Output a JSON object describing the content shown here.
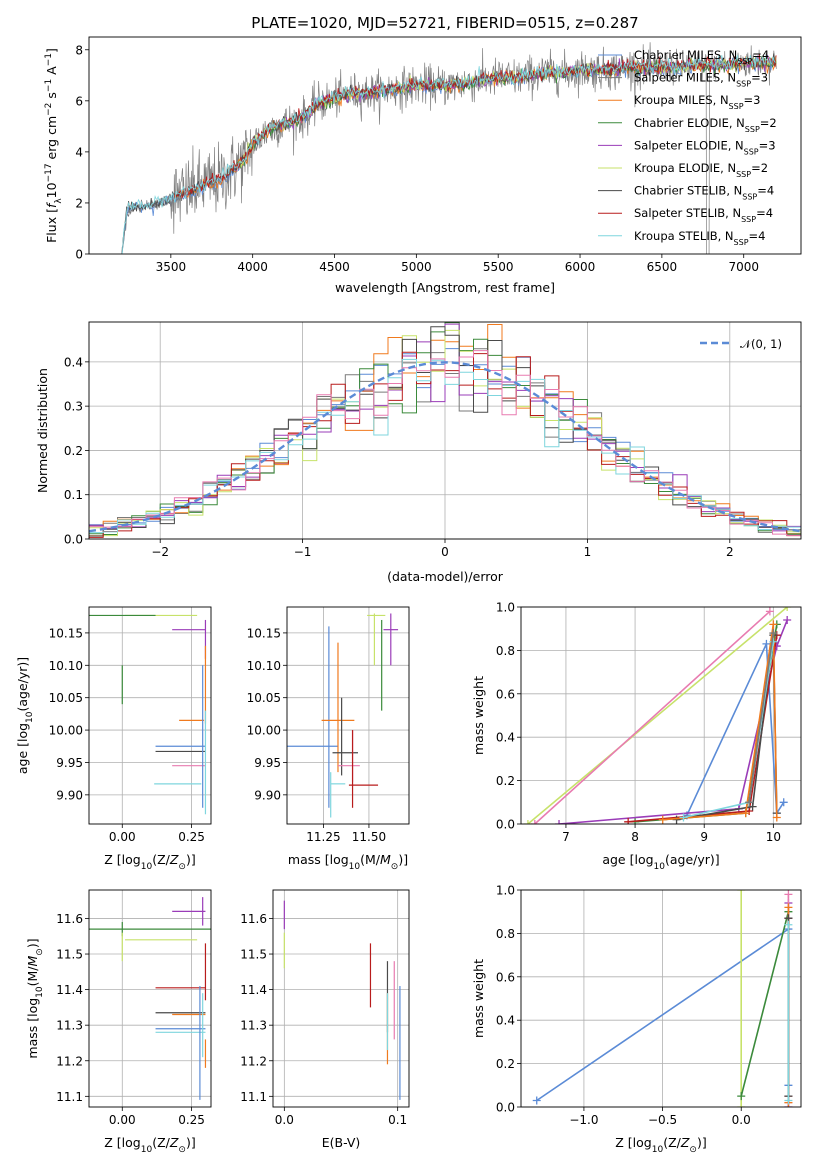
{
  "title": "PLATE=1020, MJD=52721, FIBERID=0515, z=0.287",
  "colors": {
    "chabrier_miles": "#5b8bd6",
    "salpeter_miles": "#7a7a7a",
    "kroupa_miles": "#f07a1e",
    "chabrier_elodie": "#3b8a3b",
    "salpeter_elodie": "#9a3cb8",
    "kroupa_elodie": "#c7e26a",
    "chabrier_stelib": "#4a4a4a",
    "salpeter_stelib": "#b81c1c",
    "kroupa_stelib": "#7fd6de",
    "pink": "#e87bb0",
    "data": "#808080"
  },
  "chart_data": [
    {
      "type": "line",
      "xlabel": "wavelength [Angstrom, rest frame]",
      "ylabel": "Flux [f_λ 10^-17 erg cm^-2 s^-1 A^-1]",
      "xlim": [
        3000,
        7350
      ],
      "ylim": [
        0,
        8.5
      ],
      "xticks": [
        "3500",
        "4000",
        "4500",
        "5000",
        "5500",
        "6000",
        "6500",
        "7000"
      ],
      "yticks": [
        "0",
        "2",
        "4",
        "6",
        "8"
      ],
      "legend_position": "top-right",
      "legend": [
        {
          "main": "Chabrier MILES, N",
          "sub": "SSP",
          "tail": "=4",
          "color": "chabrier_miles"
        },
        {
          "main": "Salpeter MILES, N",
          "sub": "SSP",
          "tail": "=3",
          "color": "salpeter_miles"
        },
        {
          "main": "Kroupa MILES, N",
          "sub": "SSP",
          "tail": "=3",
          "color": "kroupa_miles"
        },
        {
          "main": "Chabrier ELODIE, N",
          "sub": "SSP",
          "tail": "=2",
          "color": "chabrier_elodie"
        },
        {
          "main": "Salpeter ELODIE, N",
          "sub": "SSP",
          "tail": "=3",
          "color": "salpeter_elodie"
        },
        {
          "main": "Kroupa ELODIE, N",
          "sub": "SSP",
          "tail": "=2",
          "color": "kroupa_elodie"
        },
        {
          "main": "Chabrier STELIB, N",
          "sub": "SSP",
          "tail": "=4",
          "color": "chabrier_stelib"
        },
        {
          "main": "Salpeter STELIB, N",
          "sub": "SSP",
          "tail": "=4",
          "color": "salpeter_stelib"
        },
        {
          "main": "Kroupa STELIB, N",
          "sub": "SSP",
          "tail": "=4",
          "color": "kroupa_stelib"
        }
      ],
      "continuum_x": [
        3200,
        3230,
        3300,
        3400,
        3500,
        3600,
        3700,
        3800,
        3900,
        3950,
        4000,
        4100,
        4200,
        4300,
        4400,
        4500,
        4600,
        4700,
        4800,
        4900,
        5000,
        5100,
        5200,
        5300,
        5400,
        5500,
        5600,
        5700,
        5800,
        5900,
        6000,
        6100,
        6200,
        6300,
        6400,
        6500,
        6600,
        6700,
        6800,
        6900,
        7000,
        7100,
        7200
      ],
      "continuum_y": [
        0,
        1.7,
        1.9,
        1.9,
        2.2,
        2.4,
        2.7,
        2.9,
        3.4,
        3.7,
        4.3,
        4.9,
        5.1,
        5.3,
        5.9,
        6.1,
        6.3,
        6.3,
        6.4,
        6.5,
        6.6,
        6.6,
        6.6,
        6.7,
        6.8,
        6.9,
        6.9,
        7.0,
        7.1,
        7.1,
        7.2,
        7.2,
        7.2,
        7.3,
        7.3,
        7.3,
        7.3,
        7.4,
        7.4,
        7.4,
        7.5,
        7.5,
        7.5
      ]
    },
    {
      "type": "line",
      "xlabel": "(data-model)/error",
      "ylabel": "Normed distribution",
      "xlim": [
        -2.5,
        2.5
      ],
      "ylim": [
        0,
        0.49
      ],
      "xticks": [
        "−2",
        "−1",
        "0",
        "1",
        "2"
      ],
      "yticks": [
        "0.0",
        "0.1",
        "0.2",
        "0.3",
        "0.4"
      ],
      "grid": true,
      "legend_position": "top-right",
      "legend": "𝒩(0, 1)",
      "bin_width": 0.1
    },
    {
      "type": "scatter",
      "xlabel": "Z [log10(Z/Z⊙)]",
      "ylabel": "age [log10(age/yr)]",
      "xlim": [
        -0.12,
        0.32
      ],
      "ylim": [
        9.855,
        10.19
      ],
      "xticks": [
        "0.00",
        "0.25"
      ],
      "yticks": [
        "9.90",
        "9.95",
        "10.00",
        "10.05",
        "10.10",
        "10.15"
      ],
      "grid": true,
      "points": [
        {
          "c": "kroupa_elodie",
          "x": 0.14,
          "xerr": 0.13,
          "y": 10.177,
          "yerr": 0
        },
        {
          "c": "chabrier_elodie",
          "x": 0.0,
          "xerr": 0.12,
          "y": 10.177,
          "yerr": 0
        },
        {
          "c": "chabrier_elodie",
          "x": 0.0,
          "xerr": 0,
          "y": 10.07,
          "yerr": 0.03
        },
        {
          "c": "salpeter_elodie",
          "x": 0.24,
          "xerr": 0.06,
          "y": 10.155,
          "yerr": 0
        },
        {
          "c": "salpeter_elodie",
          "x": 0.3,
          "xerr": 0,
          "y": 10.14,
          "yerr": 0.03
        },
        {
          "c": "kroupa_miles",
          "x": 0.25,
          "xerr": 0.045,
          "y": 10.015,
          "yerr": 0
        },
        {
          "c": "kroupa_miles",
          "x": 0.3,
          "xerr": 0,
          "y": 10.07,
          "yerr": 0.06
        },
        {
          "c": "chabrier_miles",
          "x": 0.21,
          "xerr": 0.09,
          "y": 9.975,
          "yerr": 0
        },
        {
          "c": "chabrier_stelib",
          "x": 0.21,
          "xerr": 0.09,
          "y": 9.967,
          "yerr": 0
        },
        {
          "c": "pink",
          "x": 0.24,
          "xerr": 0.06,
          "y": 9.945,
          "yerr": 0
        },
        {
          "c": "kroupa_stelib",
          "x": 0.2,
          "xerr": 0.085,
          "y": 9.917,
          "yerr": 0
        },
        {
          "c": "chabrier_miles",
          "x": 0.29,
          "xerr": 0,
          "y": 9.99,
          "yerr": 0.11
        },
        {
          "c": "kroupa_stelib",
          "x": 0.3,
          "xerr": 0,
          "y": 9.95,
          "yerr": 0.08
        }
      ]
    },
    {
      "type": "scatter",
      "xlabel": "mass [log10(M/M⊙)]",
      "ylabel": "",
      "xlim": [
        11.05,
        11.72
      ],
      "ylim": [
        9.855,
        10.19
      ],
      "xticks": [
        "11.25",
        "11.50"
      ],
      "yticks": [
        "9.90",
        "9.95",
        "10.00",
        "10.05",
        "10.10",
        "10.15"
      ],
      "grid": true,
      "points": [
        {
          "c": "chabrier_miles",
          "x": 11.19,
          "xerr": 0.14,
          "y": 9.975,
          "yerr": 0
        },
        {
          "c": "chabrier_miles",
          "x": 11.28,
          "xerr": 0,
          "y": 10.02,
          "yerr": 0.14
        },
        {
          "c": "kroupa_miles",
          "x": 11.33,
          "xerr": 0.09,
          "y": 10.015,
          "yerr": 0
        },
        {
          "c": "kroupa_miles",
          "x": 11.33,
          "xerr": 0,
          "y": 10.035,
          "yerr": 0.1
        },
        {
          "c": "chabrier_stelib",
          "x": 11.37,
          "xerr": 0.07,
          "y": 9.965,
          "yerr": 0
        },
        {
          "c": "chabrier_stelib",
          "x": 11.35,
          "xerr": 0,
          "y": 9.99,
          "yerr": 0.06
        },
        {
          "c": "kroupa_stelib",
          "x": 11.33,
          "xerr": 0.04,
          "y": 9.917,
          "yerr": 0
        },
        {
          "c": "kroupa_stelib",
          "x": 11.29,
          "xerr": 0,
          "y": 9.9,
          "yerr": 0.035
        },
        {
          "c": "pink",
          "x": 11.39,
          "xerr": 0.06,
          "y": 9.945,
          "yerr": 0
        },
        {
          "c": "pink",
          "x": 11.41,
          "xerr": 0,
          "y": 9.96,
          "yerr": 0.04
        },
        {
          "c": "salpeter_stelib",
          "x": 11.47,
          "xerr": 0.08,
          "y": 9.915,
          "yerr": 0
        },
        {
          "c": "salpeter_stelib",
          "x": 11.41,
          "xerr": 0,
          "y": 9.94,
          "yerr": 0.06
        },
        {
          "c": "kroupa_elodie",
          "x": 11.54,
          "xerr": 0.05,
          "y": 10.177,
          "yerr": 0
        },
        {
          "c": "kroupa_elodie",
          "x": 11.53,
          "xerr": 0,
          "y": 10.14,
          "yerr": 0.04
        },
        {
          "c": "chabrier_elodie",
          "x": 11.57,
          "xerr": 0,
          "y": 10.1,
          "yerr": 0.07
        },
        {
          "c": "salpeter_elodie",
          "x": 11.62,
          "xerr": 0.04,
          "y": 10.155,
          "yerr": 0
        },
        {
          "c": "salpeter_elodie",
          "x": 11.62,
          "xerr": 0,
          "y": 10.14,
          "yerr": 0.04
        }
      ]
    },
    {
      "type": "line",
      "xlabel": "age [log10(age/yr)]",
      "ylabel": "mass weight",
      "xlim": [
        6.35,
        10.4
      ],
      "ylim": [
        0,
        1
      ],
      "xticks": [
        "7",
        "8",
        "9",
        "10"
      ],
      "yticks": [
        "0.0",
        "0.2",
        "0.4",
        "0.6",
        "0.8",
        "1.0"
      ],
      "grid": true,
      "series": [
        {
          "c": "kroupa_elodie",
          "x": [
            6.45,
            10.2
          ],
          "y": [
            0.0,
            1.0
          ]
        },
        {
          "c": "pink",
          "x": [
            6.55,
            9.95
          ],
          "y": [
            0.0,
            0.98
          ]
        },
        {
          "c": "chabrier_miles",
          "x": [
            8.75,
            9.9,
            10.05,
            10.15
          ],
          "y": [
            0.04,
            0.83,
            0.05,
            0.1
          ]
        },
        {
          "c": "chabrier_elodie",
          "x": [
            8.0,
            9.6,
            10.05
          ],
          "y": [
            0.01,
            0.05,
            0.92
          ]
        },
        {
          "c": "salpeter_elodie",
          "x": [
            6.9,
            9.5,
            10.05,
            10.2
          ],
          "y": [
            0.0,
            0.07,
            0.82,
            0.94
          ]
        },
        {
          "c": "salpeter_stelib",
          "x": [
            7.9,
            9.65,
            10.05
          ],
          "y": [
            0.01,
            0.06,
            0.87
          ]
        },
        {
          "c": "chabrier_stelib",
          "x": [
            8.6,
            9.7,
            10.0,
            10.05
          ],
          "y": [
            0.02,
            0.08,
            0.87,
            0.05
          ]
        },
        {
          "c": "kroupa_miles",
          "x": [
            8.4,
            9.6,
            10.0,
            10.05
          ],
          "y": [
            0.02,
            0.05,
            0.92,
            0.03
          ]
        },
        {
          "c": "kroupa_stelib",
          "x": [
            8.7,
            9.65,
            10.0
          ],
          "y": [
            0.03,
            0.1,
            0.84
          ]
        },
        {
          "c": "salpeter_miles",
          "x": [
            9.65,
            10.0
          ],
          "y": [
            0.1,
            0.88
          ]
        }
      ]
    },
    {
      "type": "scatter",
      "xlabel": "Z [log10(Z/Z⊙)]",
      "ylabel": "mass [log10(M/M⊙)]",
      "xlim": [
        -0.12,
        0.32
      ],
      "ylim": [
        11.07,
        11.68
      ],
      "xticks": [
        "0.00",
        "0.25"
      ],
      "yticks": [
        "11.1",
        "11.2",
        "11.3",
        "11.4",
        "11.5",
        "11.6"
      ],
      "grid": true,
      "points": [
        {
          "c": "salpeter_elodie",
          "x": 0.24,
          "xerr": 0.06,
          "y": 11.62,
          "yerr": 0
        },
        {
          "c": "salpeter_elodie",
          "x": 0.29,
          "xerr": 0,
          "y": 11.62,
          "yerr": 0.04
        },
        {
          "c": "chabrier_elodie",
          "x": 0.14,
          "xerr": 0.26,
          "y": 11.57,
          "yerr": 0
        },
        {
          "c": "chabrier_elodie",
          "x": 0.0,
          "xerr": 0,
          "y": 11.57,
          "yerr": 0.02
        },
        {
          "c": "kroupa_elodie",
          "x": 0.14,
          "xerr": 0.13,
          "y": 11.54,
          "yerr": 0
        },
        {
          "c": "kroupa_elodie",
          "x": 0.0,
          "xerr": 0,
          "y": 11.52,
          "yerr": 0.04
        },
        {
          "c": "salpeter_stelib",
          "x": 0.21,
          "xerr": 0.09,
          "y": 11.405,
          "yerr": 0
        },
        {
          "c": "salpeter_stelib",
          "x": 0.3,
          "xerr": 0,
          "y": 11.45,
          "yerr": 0.08
        },
        {
          "c": "chabrier_stelib",
          "x": 0.21,
          "xerr": 0.09,
          "y": 11.335,
          "yerr": 0
        },
        {
          "c": "kroupa_miles",
          "x": 0.24,
          "xerr": 0.06,
          "y": 11.33,
          "yerr": 0
        },
        {
          "c": "chabrier_miles",
          "x": 0.21,
          "xerr": 0.09,
          "y": 11.29,
          "yerr": 0
        },
        {
          "c": "kroupa_stelib",
          "x": 0.21,
          "xerr": 0.09,
          "y": 11.28,
          "yerr": 0
        },
        {
          "c": "chabrier_miles",
          "x": 0.28,
          "xerr": 0,
          "y": 11.25,
          "yerr": 0.16
        },
        {
          "c": "kroupa_miles",
          "x": 0.3,
          "xerr": 0,
          "y": 11.22,
          "yerr": 0.04
        },
        {
          "c": "kroupa_stelib",
          "x": 0.29,
          "xerr": 0,
          "y": 11.3,
          "yerr": 0.09
        }
      ]
    },
    {
      "type": "scatter",
      "xlabel": "E(B-V)",
      "ylabel": "",
      "xlim": [
        -0.01,
        0.11
      ],
      "ylim": [
        11.07,
        11.68
      ],
      "xticks": [
        "0.0",
        "0.1"
      ],
      "yticks": [
        "11.1",
        "11.2",
        "11.3",
        "11.4",
        "11.5",
        "11.6"
      ],
      "grid": true,
      "points": [
        {
          "c": "salpeter_elodie",
          "x": 0.0,
          "xerr": 0,
          "y": 11.61,
          "yerr": 0.04
        },
        {
          "c": "kroupa_elodie",
          "x": 0.0,
          "xerr": 0,
          "y": 11.51,
          "yerr": 0.05
        },
        {
          "c": "salpeter_stelib",
          "x": 0.076,
          "xerr": 0,
          "y": 11.44,
          "yerr": 0.09
        },
        {
          "c": "chabrier_stelib",
          "x": 0.091,
          "xerr": 0,
          "y": 11.38,
          "yerr": 0.1
        },
        {
          "c": "kroupa_miles",
          "x": 0.091,
          "xerr": 0,
          "y": 11.29,
          "yerr": 0.1
        },
        {
          "c": "kroupa_stelib",
          "x": 0.091,
          "xerr": 0,
          "y": 11.31,
          "yerr": 0.08
        },
        {
          "c": "pink",
          "x": 0.097,
          "xerr": 0,
          "y": 11.37,
          "yerr": 0.11
        },
        {
          "c": "chabrier_miles",
          "x": 0.102,
          "xerr": 0,
          "y": 11.25,
          "yerr": 0.16
        }
      ]
    },
    {
      "type": "line",
      "xlabel": "Z [log10(Z/Z⊙)]",
      "ylabel": "mass weight",
      "xlim": [
        -1.4,
        0.38
      ],
      "ylim": [
        0,
        1
      ],
      "xticks": [
        "−1.0",
        "−0.5",
        "0.0"
      ],
      "yticks": [
        "0.0",
        "0.2",
        "0.4",
        "0.6",
        "0.8",
        "1.0"
      ],
      "grid": true,
      "series": [
        {
          "c": "chabrier_miles",
          "x": [
            -1.3,
            0.3,
            0.3
          ],
          "y": [
            0.03,
            0.82,
            0.1
          ]
        },
        {
          "c": "kroupa_elodie",
          "x": [
            0.0,
            0.0
          ],
          "y": [
            0.0,
            1.0
          ]
        },
        {
          "c": "chabrier_elodie",
          "x": [
            0.0,
            0.3
          ],
          "y": [
            0.05,
            0.9
          ]
        },
        {
          "c": "salpeter_elodie",
          "x": [
            0.3,
            0.3
          ],
          "y": [
            0.0,
            0.94
          ]
        },
        {
          "c": "pink",
          "x": [
            0.3,
            0.3
          ],
          "y": [
            0.02,
            0.98
          ]
        },
        {
          "c": "salpeter_stelib",
          "x": [
            0.3,
            0.3
          ],
          "y": [
            0.05,
            0.87
          ]
        },
        {
          "c": "kroupa_miles",
          "x": [
            0.3,
            0.3
          ],
          "y": [
            0.02,
            0.92
          ]
        },
        {
          "c": "chabrier_stelib",
          "x": [
            0.3,
            0.3
          ],
          "y": [
            0.05,
            0.87
          ]
        },
        {
          "c": "kroupa_stelib",
          "x": [
            0.3,
            0.3
          ],
          "y": [
            0.03,
            0.84
          ]
        }
      ]
    }
  ]
}
